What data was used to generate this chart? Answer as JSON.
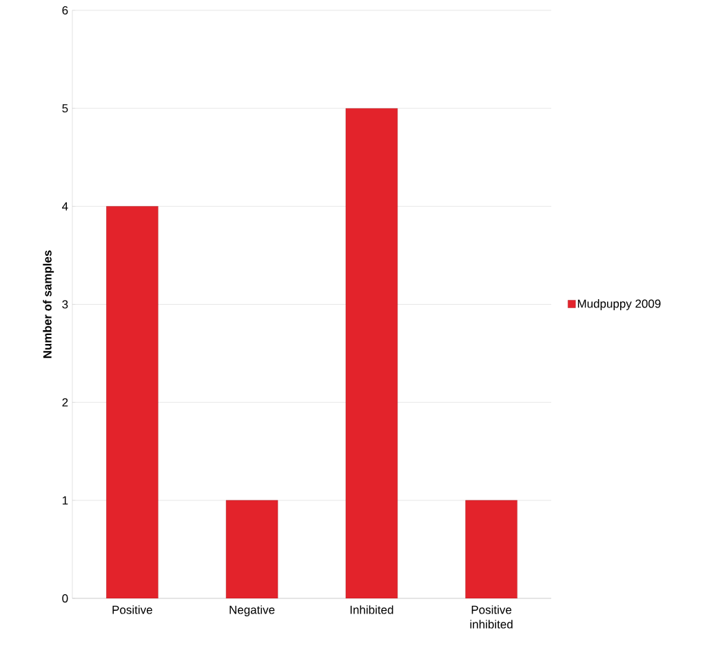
{
  "chart_data": {
    "type": "bar",
    "ylabel": "Number of samples",
    "categories": [
      "Positive",
      "Negative",
      "Inhibited",
      "Positive inhibited"
    ],
    "series": [
      {
        "name": "Mudpuppy 2009",
        "color": "#e3232b",
        "values": [
          4,
          1,
          5,
          1
        ]
      }
    ],
    "ylim": [
      0,
      6
    ],
    "yticks": [
      0,
      1,
      2,
      3,
      4,
      5,
      6
    ],
    "grid": "y",
    "legend": "right"
  }
}
